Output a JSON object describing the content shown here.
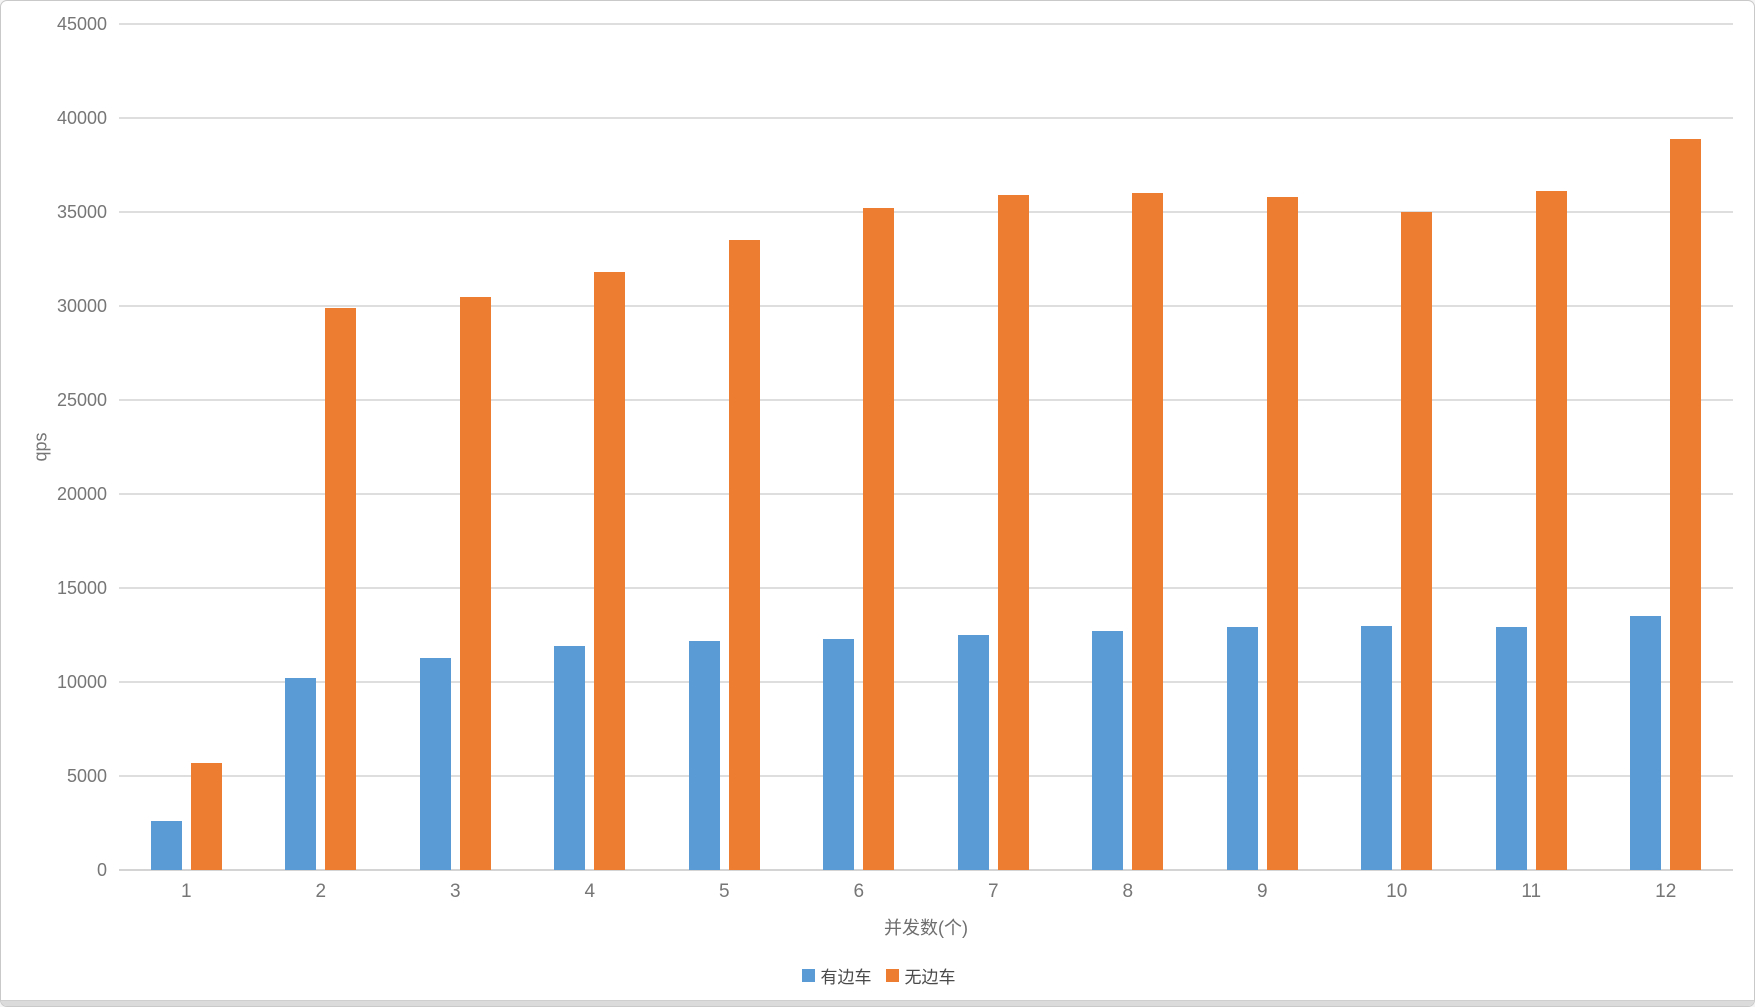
{
  "window": {
    "background": "#ffffff",
    "border_color": "#c9c9c9",
    "bottom_bar_color": "#dbdbdb"
  },
  "chart_data": {
    "type": "bar",
    "title": "",
    "categories": [
      "1",
      "2",
      "3",
      "4",
      "5",
      "6",
      "7",
      "8",
      "9",
      "10",
      "11",
      "12"
    ],
    "series": [
      {
        "name": "有边车",
        "color": "#5B9BD5",
        "values": [
          2600,
          10200,
          11300,
          11900,
          12200,
          12300,
          12500,
          12700,
          12900,
          13000,
          12900,
          13500
        ]
      },
      {
        "name": "无边车",
        "color": "#ED7D31",
        "values": [
          5700,
          29900,
          30500,
          31800,
          33500,
          35200,
          35900,
          36000,
          35800,
          35000,
          36100,
          38900
        ]
      }
    ],
    "xlabel": "并发数(个)",
    "ylabel": "qps",
    "ylim": [
      0,
      45000
    ],
    "ytick_step": 5000,
    "ytick_labels": [
      "0",
      "5000",
      "10000",
      "15000",
      "20000",
      "25000",
      "30000",
      "35000",
      "40000",
      "45000"
    ],
    "grid": true,
    "legend_position": "bottom",
    "gridline_color": "#dedede",
    "axis_text_color": "#767676",
    "legend_text_color": "#4a4a4a"
  }
}
